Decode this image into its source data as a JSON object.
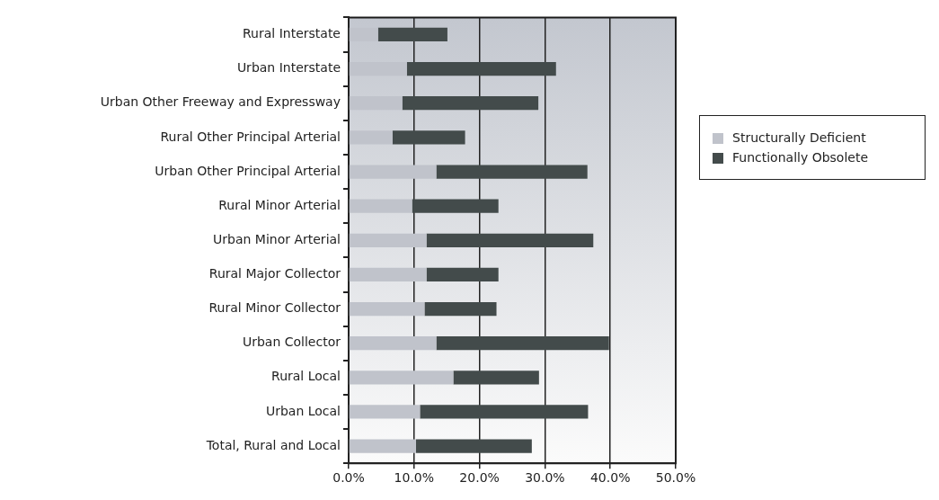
{
  "chart_data": {
    "type": "bar",
    "orientation": "horizontal",
    "stacked": true,
    "categories": [
      "Rural Interstate",
      "Urban Interstate",
      "Urban Other Freeway and Expressway",
      "Rural Other Principal Arterial",
      "Urban Other Principal Arterial",
      "Rural Minor Arterial",
      "Urban Minor Arterial",
      "Rural Major Collector",
      "Rural Minor Collector",
      "Urban Collector",
      "Rural Local",
      "Urban Local",
      "Total, Rural and Local"
    ],
    "series": [
      {
        "name": "Structurally Deficient",
        "color": "#c0c3cb",
        "values": [
          4.5,
          8.9,
          8.2,
          6.7,
          13.4,
          9.7,
          11.9,
          11.9,
          11.6,
          13.4,
          16.0,
          10.9,
          10.3
        ]
      },
      {
        "name": "Functionally Obsolete",
        "color": "#434b4b",
        "values": [
          10.6,
          22.8,
          20.8,
          11.1,
          23.1,
          13.2,
          25.5,
          11.0,
          11.0,
          26.4,
          13.1,
          25.7,
          17.7
        ]
      }
    ],
    "xlim": [
      0,
      50
    ],
    "xticks": [
      {
        "value": 0,
        "label": "0.0%"
      },
      {
        "value": 10,
        "label": "10.0%"
      },
      {
        "value": 20,
        "label": "20.0%"
      },
      {
        "value": 30,
        "label": "30.0%"
      },
      {
        "value": 40,
        "label": "40.0%"
      },
      {
        "value": 50,
        "label": "50.0%"
      }
    ],
    "grid": "x",
    "legend": "right"
  }
}
